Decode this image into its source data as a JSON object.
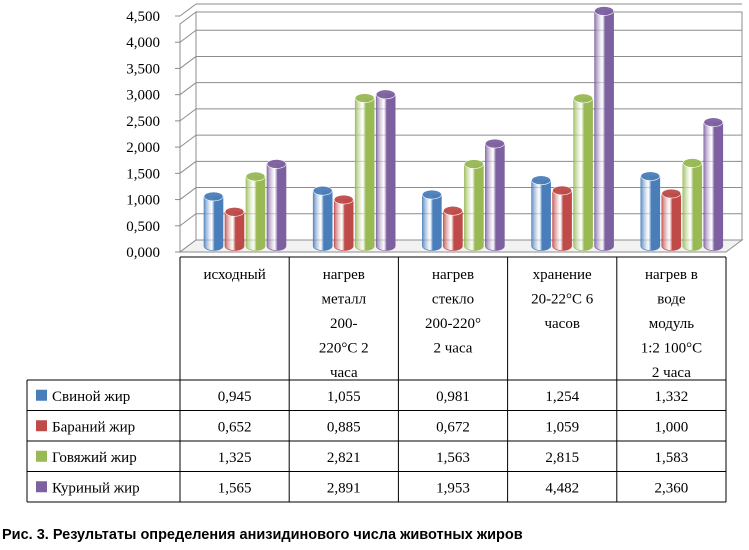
{
  "chart_data": {
    "type": "bar",
    "style": "3d-clustered-with-data-table",
    "categories": [
      [
        "исходный"
      ],
      [
        "нагрев",
        "металл",
        "200-",
        "220°С 2",
        "часа"
      ],
      [
        "нагрев",
        "стекло",
        "200-220°",
        "2 часа"
      ],
      [
        "хранение",
        "20-22°С 6",
        "часов"
      ],
      [
        "нагрев в",
        "воде",
        "модуль",
        "1:2 100°С",
        "2 часа"
      ]
    ],
    "series": [
      {
        "name": "Свиной жир",
        "color": "#4a7ebb",
        "values": [
          0.945,
          1.055,
          0.981,
          1.254,
          1.332
        ],
        "labels": [
          "0,945",
          "1,055",
          "0,981",
          "1,254",
          "1,332"
        ]
      },
      {
        "name": "Бараний жир",
        "color": "#be4b48",
        "values": [
          0.652,
          0.885,
          0.672,
          1.059,
          1.0
        ],
        "labels": [
          "0,652",
          "0,885",
          "0,672",
          "1,059",
          "1,000"
        ]
      },
      {
        "name": "Говяжий жир",
        "color": "#98b954",
        "values": [
          1.325,
          2.821,
          1.563,
          2.815,
          1.583
        ],
        "labels": [
          "1,325",
          "2,821",
          "1,563",
          "2,815",
          "1,583"
        ]
      },
      {
        "name": "Куриный жир",
        "color": "#7d60a0",
        "values": [
          1.565,
          2.891,
          1.953,
          4.482,
          2.36
        ],
        "labels": [
          "1,565",
          "2,891",
          "1,953",
          "4,482",
          "2,360"
        ]
      }
    ],
    "ylim": [
      0,
      4.5
    ],
    "yticks": [
      "0,000",
      "0,500",
      "1,000",
      "1,500",
      "2,000",
      "2,500",
      "3,000",
      "3,500",
      "4,000",
      "4,500"
    ],
    "grid": true,
    "title": "",
    "xlabel": "",
    "ylabel": ""
  },
  "caption": "Рис. 3. Результаты определения анизидинового числа животных жиров"
}
